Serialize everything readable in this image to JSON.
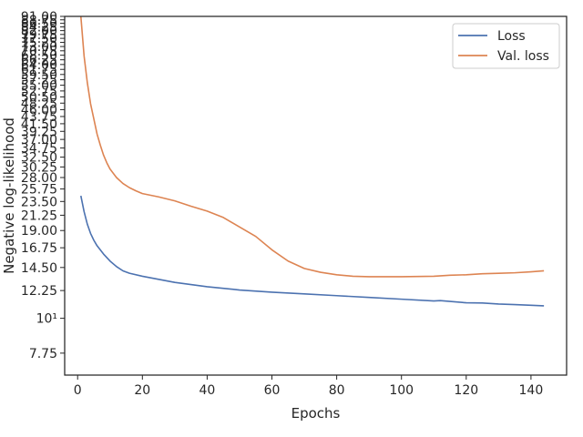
{
  "chart_data": {
    "type": "line",
    "xlabel": "Epochs",
    "ylabel": "Negative log-likelihood",
    "y_scale": "log",
    "xlim": [
      -4,
      151
    ],
    "ylim": [
      6.6,
      91.0
    ],
    "x_ticks": [
      0,
      20,
      40,
      60,
      80,
      100,
      120,
      140
    ],
    "x_tick_labels": [
      "0",
      "20",
      "40",
      "60",
      "80",
      "100",
      "120",
      "140"
    ],
    "y_ticks": [
      7.75,
      10,
      12.25,
      14.5,
      16.75,
      19.0,
      21.25,
      23.5,
      25.75,
      28.0,
      30.25,
      32.5,
      34.75,
      37.0,
      39.25,
      41.5,
      43.75,
      46.0,
      48.25,
      50.5,
      52.75,
      55.0,
      57.25,
      59.5,
      61.75,
      64.0,
      66.25,
      68.5,
      70.75,
      73.0,
      75.25,
      77.5,
      79.75,
      82.0,
      84.25,
      86.5,
      88.75,
      91.0
    ],
    "y_tick_labels": [
      "7.75",
      "10¹",
      "12.25",
      "14.50",
      "16.75",
      "19.00",
      "21.25",
      "23.50",
      "25.75",
      "28.00",
      "30.25",
      "32.50",
      "34.75",
      "37.00",
      "39.25",
      "41.50",
      "43.75",
      "46.00",
      "48.25",
      "50.50",
      "52.75",
      "55.00",
      "57.25",
      "59.50",
      "61.75",
      "64.00",
      "66.25",
      "68.50",
      "70.75",
      "73.00",
      "75.25",
      "77.50",
      "79.75",
      "82.00",
      "84.25",
      "86.50",
      "88.75",
      "91.00"
    ],
    "grid": false,
    "legend": "top-right",
    "series": [
      {
        "name": "Loss",
        "color": "#4c72b0",
        "x": [
          1,
          2,
          3,
          4,
          5,
          6,
          8,
          10,
          12,
          14,
          16,
          20,
          25,
          30,
          35,
          40,
          50,
          60,
          70,
          80,
          90,
          100,
          110,
          112,
          120,
          125,
          130,
          135,
          140,
          144
        ],
        "y": [
          24.5,
          21.8,
          19.9,
          18.6,
          17.7,
          17.0,
          16.0,
          15.2,
          14.6,
          14.15,
          13.9,
          13.6,
          13.3,
          13.0,
          12.8,
          12.6,
          12.3,
          12.1,
          11.95,
          11.8,
          11.65,
          11.5,
          11.35,
          11.38,
          11.2,
          11.18,
          11.1,
          11.05,
          11.0,
          10.95
        ]
      },
      {
        "name": "Val. loss",
        "color": "#dd8452",
        "x": [
          1,
          2,
          3,
          4,
          5,
          6,
          7,
          8,
          9,
          10,
          12,
          14,
          16,
          18,
          20,
          25,
          30,
          35,
          40,
          45,
          50,
          55,
          60,
          65,
          70,
          75,
          80,
          85,
          90,
          100,
          110,
          115,
          120,
          125,
          130,
          135,
          140,
          144
        ],
        "y": [
          91.0,
          68.0,
          56.0,
          48.0,
          43.0,
          38.5,
          35.5,
          33.0,
          31.2,
          29.8,
          28.0,
          26.8,
          26.0,
          25.4,
          24.9,
          24.3,
          23.6,
          22.7,
          21.9,
          20.9,
          19.5,
          18.2,
          16.5,
          15.2,
          14.4,
          14.0,
          13.75,
          13.6,
          13.55,
          13.55,
          13.6,
          13.7,
          13.75,
          13.85,
          13.9,
          13.95,
          14.05,
          14.15
        ]
      }
    ]
  }
}
